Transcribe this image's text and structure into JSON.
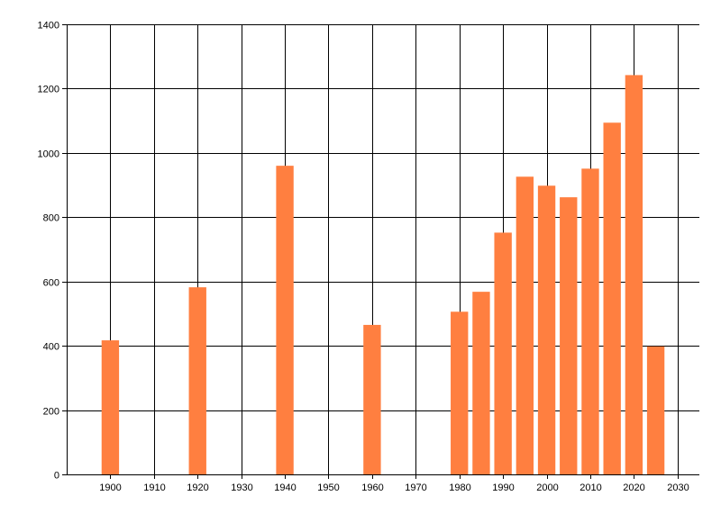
{
  "chart_data": {
    "type": "bar",
    "title": "",
    "xlabel": "",
    "ylabel": "",
    "x": [
      1900,
      1920,
      1940,
      1960,
      1980,
      1985,
      1990,
      1995,
      2000,
      2005,
      2010,
      2015,
      2020,
      2025
    ],
    "values": [
      417,
      582,
      960,
      465,
      506,
      568,
      752,
      926,
      898,
      862,
      951,
      1094,
      1242,
      398
    ],
    "xlim": [
      1890,
      2035
    ],
    "ylim": [
      0,
      1400
    ],
    "xticks": [
      1900,
      1910,
      1920,
      1930,
      1940,
      1950,
      1960,
      1970,
      1980,
      1990,
      2000,
      2010,
      2020,
      2030
    ],
    "yticks": [
      0,
      200,
      400,
      600,
      800,
      1000,
      1200,
      1400
    ],
    "bar_width_years": 4,
    "grid": true,
    "legend": "none",
    "bar_color": "#FF7F40",
    "grid_color": "#000000"
  }
}
